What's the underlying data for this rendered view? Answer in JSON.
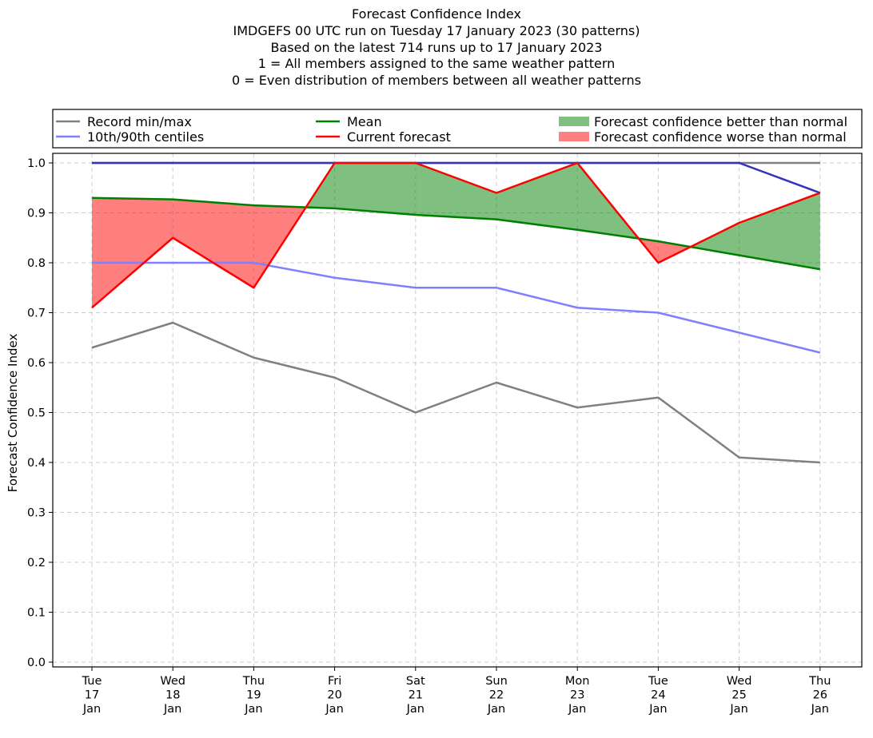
{
  "chart_data": {
    "type": "line",
    "title_lines": [
      "Forecast Confidence Index",
      "IMDGEFS 00 UTC run on Tuesday 17 January 2023 (30 patterns)",
      "Based on the latest 714 runs up to 17 January 2023",
      "1 = All members assigned to the same weather pattern",
      "0 = Even distribution of members between all weather patterns"
    ],
    "ylabel": "Forecast Confidence Index",
    "ylim": [
      0.0,
      1.0
    ],
    "yticks": [
      "0.0",
      "0.1",
      "0.2",
      "0.3",
      "0.4",
      "0.5",
      "0.6",
      "0.7",
      "0.8",
      "0.9",
      "1.0"
    ],
    "grid": true,
    "legend_position": "top",
    "categories": [
      [
        "Tue",
        "17",
        "Jan"
      ],
      [
        "Wed",
        "18",
        "Jan"
      ],
      [
        "Thu",
        "19",
        "Jan"
      ],
      [
        "Fri",
        "20",
        "Jan"
      ],
      [
        "Sat",
        "21",
        "Jan"
      ],
      [
        "Sun",
        "22",
        "Jan"
      ],
      [
        "Mon",
        "23",
        "Jan"
      ],
      [
        "Tue",
        "24",
        "Jan"
      ],
      [
        "Wed",
        "25",
        "Jan"
      ],
      [
        "Thu",
        "26",
        "Jan"
      ]
    ],
    "series": [
      {
        "name": "Record min/max",
        "key": "record_min",
        "color": "#808080",
        "values": [
          0.63,
          0.68,
          0.61,
          0.57,
          0.5,
          0.56,
          0.51,
          0.53,
          0.41,
          0.4
        ]
      },
      {
        "name": "Record min/max",
        "key": "record_max",
        "color": "#808080",
        "values": [
          1.0,
          1.0,
          1.0,
          1.0,
          1.0,
          1.0,
          1.0,
          1.0,
          1.0,
          1.0
        ]
      },
      {
        "name": "10th/90th centiles",
        "key": "p10",
        "color": "#7f7fff",
        "values": [
          0.8,
          0.8,
          0.8,
          0.77,
          0.75,
          0.75,
          0.71,
          0.7,
          0.66,
          0.62
        ]
      },
      {
        "name": "10th/90th centiles",
        "key": "p90",
        "color": "#3333bb",
        "values": [
          1.0,
          1.0,
          1.0,
          1.0,
          1.0,
          1.0,
          1.0,
          1.0,
          1.0,
          0.94
        ]
      },
      {
        "name": "Mean",
        "key": "mean",
        "color": "#008000",
        "values": [
          0.93,
          0.927,
          0.915,
          0.909,
          0.896,
          0.887,
          0.866,
          0.843,
          0.815,
          0.787
        ]
      },
      {
        "name": "Current forecast",
        "key": "current",
        "color": "#ff0000",
        "values": [
          0.71,
          0.85,
          0.75,
          1.0,
          1.0,
          0.94,
          1.0,
          0.8,
          0.88,
          0.94
        ]
      }
    ],
    "fills": {
      "better_color": "#008000",
      "worse_color": "#ff0000"
    },
    "legend": [
      {
        "label": "Record min/max",
        "kind": "line",
        "color": "#808080"
      },
      {
        "label": "10th/90th centiles",
        "kind": "line",
        "color": "#7f7fff"
      },
      {
        "label": "Mean",
        "kind": "line",
        "color": "#008000"
      },
      {
        "label": "Current forecast",
        "kind": "line",
        "color": "#ff0000"
      },
      {
        "label": "Forecast confidence better than normal",
        "kind": "patch",
        "color": "#80bf80"
      },
      {
        "label": "Forecast confidence worse than normal",
        "kind": "patch",
        "color": "#ff8080"
      }
    ]
  }
}
